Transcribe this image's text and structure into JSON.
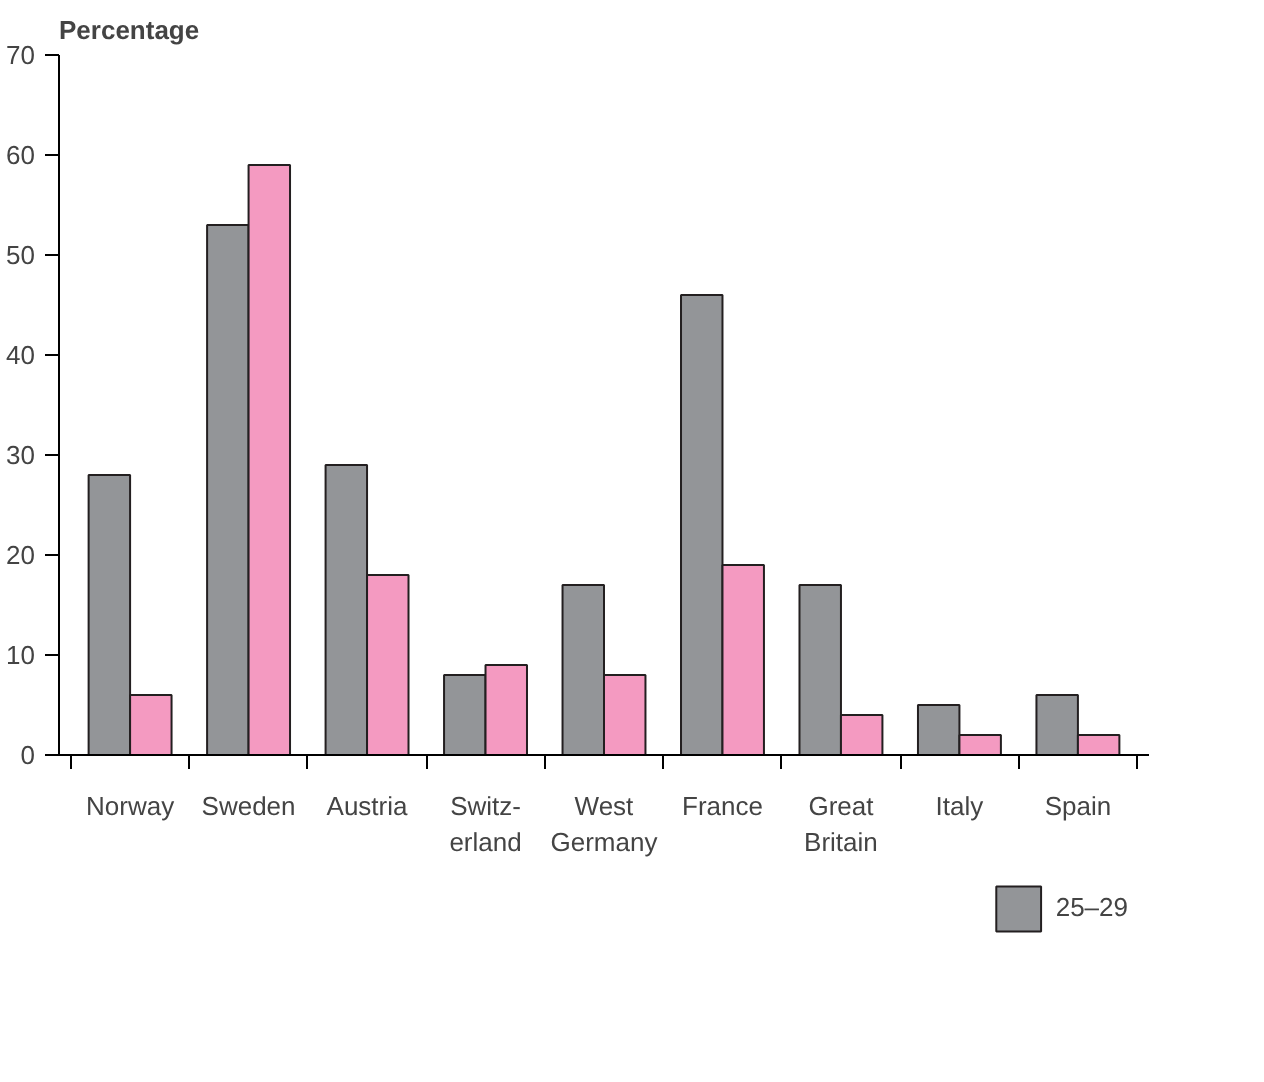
{
  "chart_data": {
    "type": "bar",
    "ylabel": "Percentage",
    "categories": [
      "Norway",
      "Sweden",
      "Austria",
      "Switz-\nerland",
      "West\nGermany",
      "France",
      "Great\nBritain",
      "Italy",
      "Spain"
    ],
    "series": [
      {
        "name": "25–29",
        "color": "#939598",
        "values": [
          28,
          53,
          29,
          8,
          17,
          46,
          17,
          5,
          6
        ]
      },
      {
        "color": "#f49ac1",
        "values": [
          6,
          59,
          18,
          9,
          8,
          19,
          4,
          2,
          2
        ]
      }
    ],
    "ylim": [
      0,
      70
    ],
    "yticks": [
      0,
      10,
      20,
      30,
      40,
      50,
      60,
      70
    ],
    "grid": false,
    "legend": "bottom right"
  }
}
